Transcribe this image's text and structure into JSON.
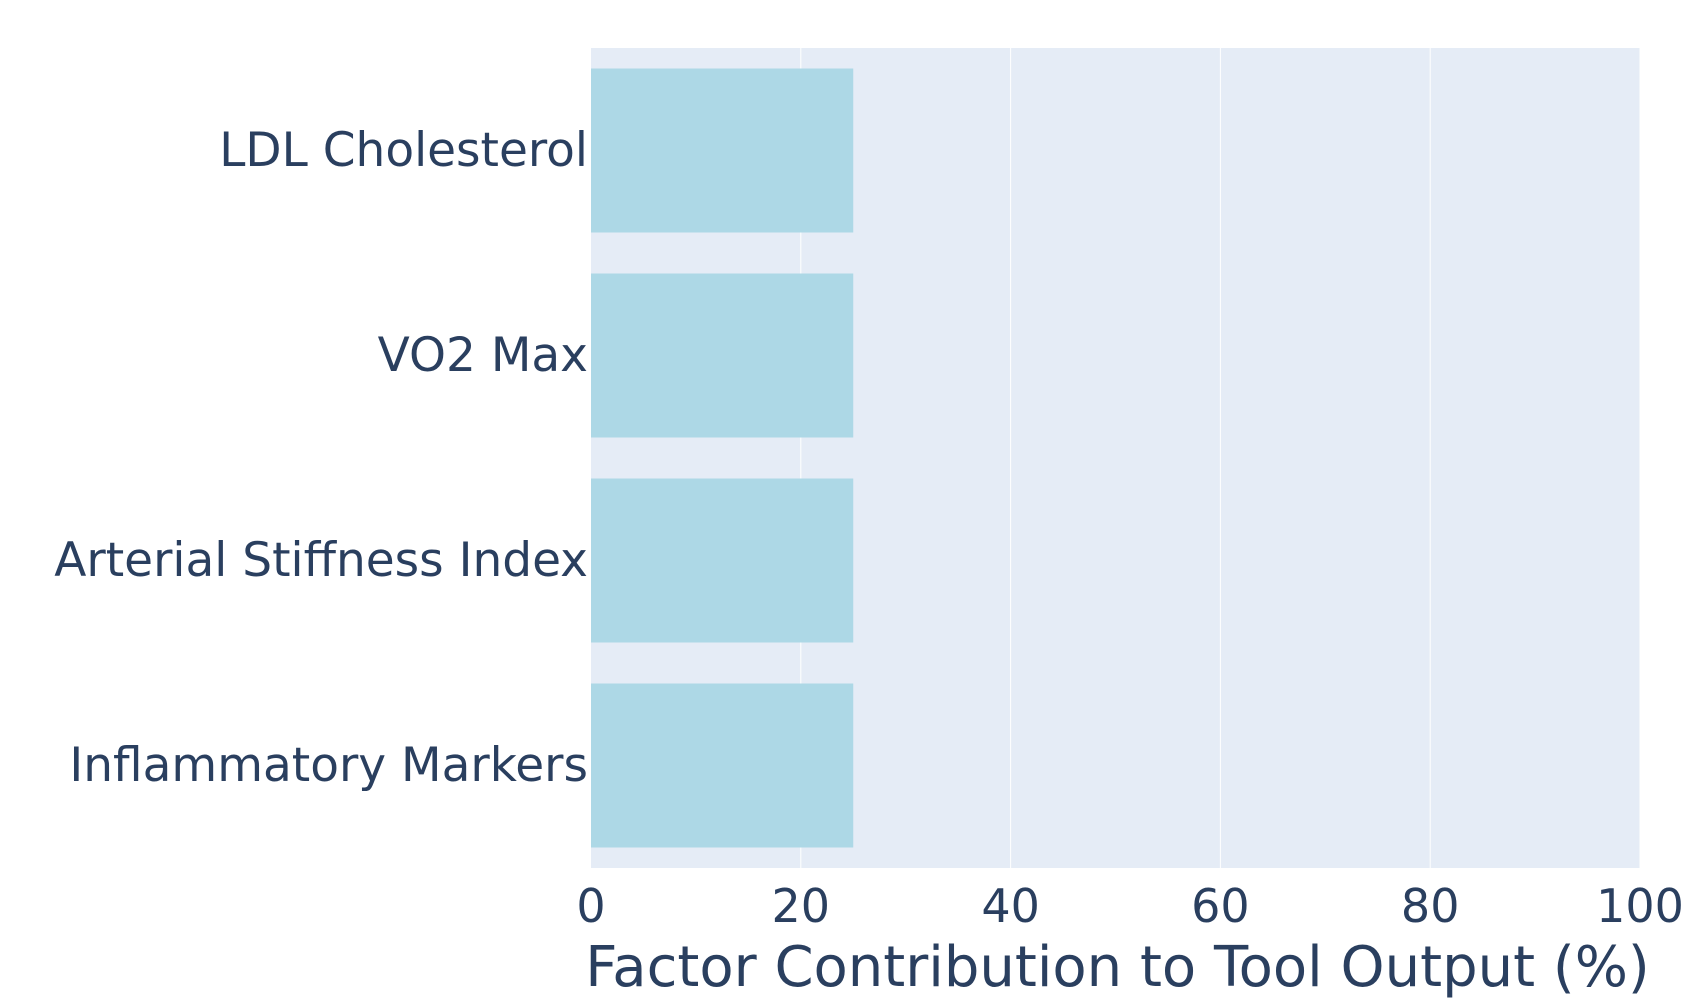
{
  "chart_data": {
    "type": "bar",
    "orientation": "horizontal",
    "categories": [
      "LDL Cholesterol",
      "VO2 Max",
      "Arterial Stiffness Index",
      "Inflammatory Markers"
    ],
    "values": [
      25,
      25,
      25,
      25
    ],
    "xlabel": "Factor Contribution to Tool Output (%)",
    "ylabel": "",
    "xlim": [
      0,
      100
    ],
    "xticks": [
      "0",
      "20",
      "40",
      "60",
      "80",
      "100"
    ],
    "grid": true,
    "legend": "none",
    "colors": {
      "bar": "#add8e6",
      "plot_background": "#e5ecf6",
      "gridline": "#ffffff",
      "text": "#2a3f5f"
    }
  }
}
